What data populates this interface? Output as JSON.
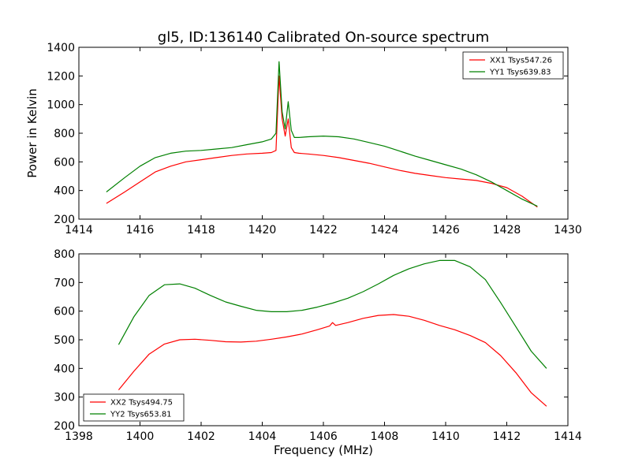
{
  "chart_data": [
    {
      "type": "line",
      "title": "gl5, ID:136140 Calibrated On-source spectrum",
      "xlabel": "",
      "ylabel": "Power in Kelvin",
      "xlim": [
        1414,
        1430
      ],
      "ylim": [
        200,
        1400
      ],
      "xticks": [
        1414,
        1416,
        1418,
        1420,
        1422,
        1424,
        1426,
        1428,
        1430
      ],
      "yticks": [
        200,
        400,
        600,
        800,
        1000,
        1200,
        1400
      ],
      "grid": false,
      "legend_position": "top-right",
      "series": [
        {
          "name": "XX1 Tsys547.26",
          "color": "#ff0000",
          "x": [
            1414.9,
            1415.5,
            1416.0,
            1416.5,
            1417.0,
            1417.5,
            1418.0,
            1418.5,
            1419.0,
            1419.5,
            1420.0,
            1420.3,
            1420.45,
            1420.55,
            1420.65,
            1420.75,
            1420.85,
            1420.95,
            1421.05,
            1421.2,
            1421.5,
            1422.0,
            1422.5,
            1423.0,
            1423.5,
            1424.0,
            1424.5,
            1425.0,
            1425.5,
            1426.0,
            1426.5,
            1427.0,
            1427.5,
            1428.0,
            1428.5,
            1429.0
          ],
          "y": [
            310,
            390,
            460,
            530,
            570,
            600,
            615,
            630,
            645,
            655,
            660,
            665,
            680,
            1200,
            900,
            780,
            900,
            700,
            665,
            660,
            655,
            645,
            630,
            610,
            590,
            565,
            540,
            520,
            505,
            490,
            480,
            470,
            450,
            420,
            360,
            285
          ]
        },
        {
          "name": "YY1 Tsys639.83",
          "color": "#008000",
          "x": [
            1414.9,
            1415.5,
            1416.0,
            1416.5,
            1417.0,
            1417.5,
            1418.0,
            1418.5,
            1419.0,
            1419.5,
            1420.0,
            1420.3,
            1420.45,
            1420.55,
            1420.65,
            1420.75,
            1420.85,
            1420.95,
            1421.05,
            1421.2,
            1421.5,
            1422.0,
            1422.5,
            1423.0,
            1423.5,
            1424.0,
            1424.5,
            1425.0,
            1425.5,
            1426.0,
            1426.5,
            1427.0,
            1427.5,
            1428.0,
            1428.5,
            1429.0
          ],
          "y": [
            390,
            490,
            570,
            630,
            660,
            675,
            680,
            690,
            700,
            720,
            740,
            760,
            800,
            1300,
            950,
            830,
            1020,
            820,
            770,
            770,
            775,
            780,
            775,
            760,
            735,
            710,
            675,
            640,
            610,
            580,
            550,
            510,
            460,
            400,
            340,
            290
          ]
        }
      ]
    },
    {
      "type": "line",
      "title": "",
      "xlabel": "Frequency (MHz)",
      "ylabel": "",
      "xlim": [
        1398,
        1414
      ],
      "ylim": [
        200,
        800
      ],
      "xticks": [
        1398,
        1400,
        1402,
        1404,
        1406,
        1408,
        1410,
        1412,
        1414
      ],
      "yticks": [
        200,
        300,
        400,
        500,
        600,
        700,
        800
      ],
      "grid": false,
      "legend_position": "bottom-left",
      "series": [
        {
          "name": "XX2 Tsys494.75",
          "color": "#ff0000",
          "x": [
            1399.3,
            1399.8,
            1400.3,
            1400.8,
            1401.3,
            1401.8,
            1402.3,
            1402.8,
            1403.3,
            1403.8,
            1404.3,
            1404.8,
            1405.3,
            1405.8,
            1406.2,
            1406.3,
            1406.4,
            1406.8,
            1407.3,
            1407.8,
            1408.3,
            1408.8,
            1409.3,
            1409.8,
            1410.3,
            1410.8,
            1411.3,
            1411.8,
            1412.3,
            1412.8,
            1413.3
          ],
          "y": [
            325,
            390,
            450,
            485,
            500,
            502,
            498,
            493,
            492,
            495,
            502,
            510,
            520,
            535,
            548,
            560,
            550,
            560,
            575,
            585,
            588,
            582,
            568,
            550,
            535,
            515,
            490,
            445,
            385,
            315,
            268
          ]
        },
        {
          "name": "YY2 Tsys653.81",
          "color": "#008000",
          "x": [
            1399.3,
            1399.8,
            1400.3,
            1400.8,
            1401.3,
            1401.8,
            1402.3,
            1402.8,
            1403.3,
            1403.8,
            1404.3,
            1404.8,
            1405.3,
            1405.8,
            1406.3,
            1406.8,
            1407.3,
            1407.8,
            1408.3,
            1408.8,
            1409.3,
            1409.8,
            1410.3,
            1410.8,
            1411.3,
            1411.8,
            1412.3,
            1412.8,
            1413.3
          ],
          "y": [
            483,
            580,
            655,
            692,
            695,
            680,
            655,
            632,
            617,
            603,
            598,
            598,
            603,
            614,
            628,
            645,
            668,
            695,
            725,
            748,
            765,
            777,
            777,
            755,
            710,
            630,
            545,
            460,
            400
          ]
        }
      ]
    }
  ]
}
